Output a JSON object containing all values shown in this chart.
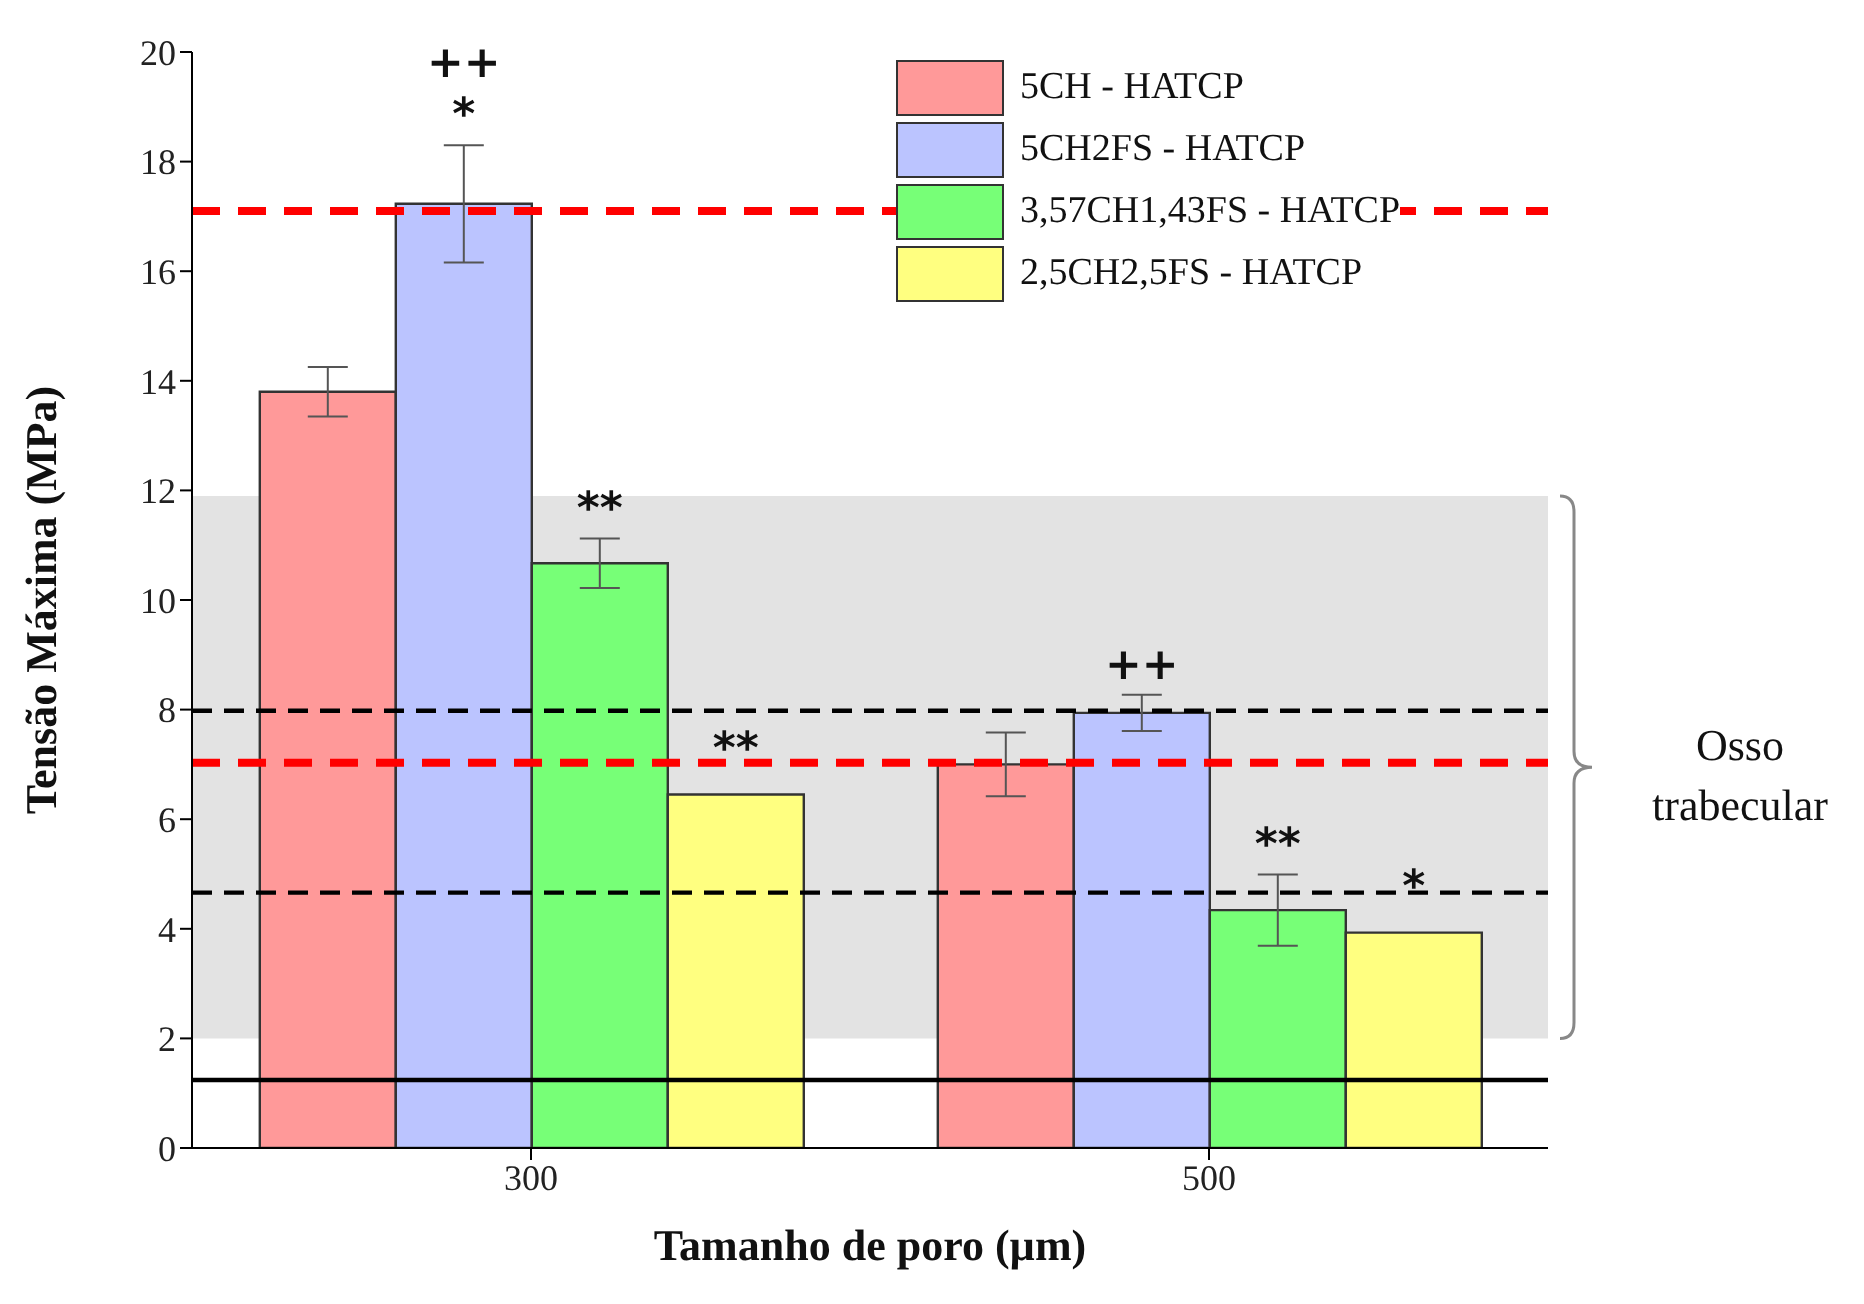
{
  "chart_data": {
    "type": "bar",
    "xlabel": "Tamanho de poro (µm)",
    "ylabel": "Tensão Máxima (MPa)",
    "categories": [
      "300",
      "500"
    ],
    "series": [
      {
        "name": "5CH - HATCP",
        "color": "#ff9999",
        "values": [
          13.8,
          7.0
        ],
        "errors": [
          0.45,
          0.58
        ]
      },
      {
        "name": "5CH2FS - HATCP",
        "color": "#bbc4ff",
        "values": [
          17.23,
          7.94
        ],
        "errors": [
          1.07,
          0.33
        ],
        "value_labels": [
          "++\n*",
          "++"
        ]
      },
      {
        "name": "3,57CH1,43FS - HATCP",
        "color": "#77ff77",
        "values": [
          10.67,
          4.34
        ],
        "errors": [
          0.45,
          0.65
        ],
        "value_labels": [
          "**",
          "**"
        ]
      },
      {
        "name": "2,5CH2,5FS - HATCP",
        "color": "#ffff80",
        "values": [
          6.45,
          3.93
        ],
        "value_labels": [
          "**",
          "*"
        ]
      }
    ],
    "ylim": [
      0,
      20
    ],
    "yticks": [
      0,
      2,
      4,
      6,
      8,
      10,
      12,
      14,
      16,
      18,
      20
    ],
    "ref_lines": [
      {
        "axis": "y",
        "value": 17.1,
        "color": "#ff0000",
        "line_style": "dashed"
      },
      {
        "axis": "y",
        "value": 7.98,
        "color": "#000000",
        "line_style": "dashed"
      },
      {
        "axis": "y",
        "value": 7.03,
        "color": "#ff0000",
        "line_style": "dashed"
      },
      {
        "axis": "y",
        "value": 4.66,
        "color": "#000000",
        "line_style": "dashed"
      },
      {
        "axis": "y",
        "value": 1.24,
        "color": "#000000",
        "line_style": "solid"
      }
    ],
    "bands": [
      {
        "axis": "y",
        "from": 2,
        "to": 11.9,
        "label": "Osso trabecular",
        "color": "#cccccc"
      }
    ],
    "legend": "top right"
  }
}
